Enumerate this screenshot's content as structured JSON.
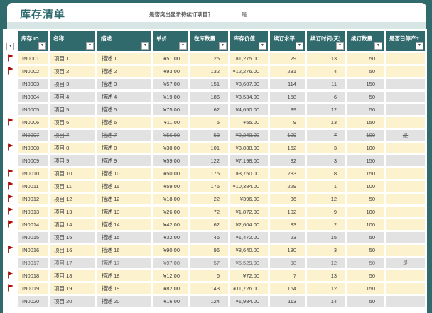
{
  "page": {
    "title": "库存清单",
    "highlight_question": "是否突出显示待续订项目？",
    "highlight_answer": "是"
  },
  "colors": {
    "teal": "#306a6c",
    "pale_band": "#d8e5e5",
    "row_highlight": "#fdf2ce",
    "row_plain": "#e2e2e2",
    "flag_red": "#c00000",
    "title_text": "#2f6b6e"
  },
  "table": {
    "columns": [
      "库存 ID",
      "名称",
      "描述",
      "单价",
      "在库数量",
      "库存价值",
      "续订水平",
      "续订时间(天)",
      "续订数量",
      "是否已停产?"
    ],
    "rows": [
      {
        "id": "IN0001",
        "name": "项目 1",
        "desc": "描述 1",
        "price": "¥51.00",
        "qty": "25",
        "value": "¥1,275.00",
        "level": "29",
        "days": "13",
        "rqty": "50",
        "disc": "",
        "flagged": true,
        "struck": false
      },
      {
        "id": "IN0002",
        "name": "项目 2",
        "desc": "描述 2",
        "price": "¥93.00",
        "qty": "132",
        "value": "¥12,276.00",
        "level": "231",
        "days": "4",
        "rqty": "50",
        "disc": "",
        "flagged": true,
        "struck": false
      },
      {
        "id": "IN0003",
        "name": "项目 3",
        "desc": "描述 3",
        "price": "¥57.00",
        "qty": "151",
        "value": "¥8,607.00",
        "level": "114",
        "days": "11",
        "rqty": "150",
        "disc": "",
        "flagged": false,
        "struck": false
      },
      {
        "id": "IN0004",
        "name": "项目 4",
        "desc": "描述 4",
        "price": "¥19.00",
        "qty": "186",
        "value": "¥3,534.00",
        "level": "158",
        "days": "6",
        "rqty": "50",
        "disc": "",
        "flagged": false,
        "struck": false
      },
      {
        "id": "IN0005",
        "name": "项目 5",
        "desc": "描述 5",
        "price": "¥75.00",
        "qty": "62",
        "value": "¥4,650.00",
        "level": "39",
        "days": "12",
        "rqty": "50",
        "disc": "",
        "flagged": false,
        "struck": false
      },
      {
        "id": "IN0006",
        "name": "项目 6",
        "desc": "描述 6",
        "price": "¥11.00",
        "qty": "5",
        "value": "¥55.00",
        "level": "9",
        "days": "13",
        "rqty": "150",
        "disc": "",
        "flagged": true,
        "struck": false
      },
      {
        "id": "IN0007",
        "name": "项目 7",
        "desc": "描述 7",
        "price": "¥56.00",
        "qty": "58",
        "value": "¥3,248.00",
        "level": "109",
        "days": "7",
        "rqty": "100",
        "disc": "是",
        "flagged": false,
        "struck": true
      },
      {
        "id": "IN0008",
        "name": "项目 8",
        "desc": "描述 8",
        "price": "¥38.00",
        "qty": "101",
        "value": "¥3,838.00",
        "level": "162",
        "days": "3",
        "rqty": "100",
        "disc": "",
        "flagged": true,
        "struck": false
      },
      {
        "id": "IN0009",
        "name": "项目 9",
        "desc": "描述 9",
        "price": "¥59.00",
        "qty": "122",
        "value": "¥7,198.00",
        "level": "82",
        "days": "3",
        "rqty": "150",
        "disc": "",
        "flagged": false,
        "struck": false
      },
      {
        "id": "IN0010",
        "name": "项目 10",
        "desc": "描述 10",
        "price": "¥50.00",
        "qty": "175",
        "value": "¥8,750.00",
        "level": "283",
        "days": "8",
        "rqty": "150",
        "disc": "",
        "flagged": true,
        "struck": false
      },
      {
        "id": "IN0011",
        "name": "项目 11",
        "desc": "描述 11",
        "price": "¥59.00",
        "qty": "176",
        "value": "¥10,384.00",
        "level": "229",
        "days": "1",
        "rqty": "100",
        "disc": "",
        "flagged": true,
        "struck": false
      },
      {
        "id": "IN0012",
        "name": "项目 12",
        "desc": "描述 12",
        "price": "¥18.00",
        "qty": "22",
        "value": "¥396.00",
        "level": "36",
        "days": "12",
        "rqty": "50",
        "disc": "",
        "flagged": true,
        "struck": false
      },
      {
        "id": "IN0013",
        "name": "项目 13",
        "desc": "描述 13",
        "price": "¥26.00",
        "qty": "72",
        "value": "¥1,872.00",
        "level": "102",
        "days": "9",
        "rqty": "100",
        "disc": "",
        "flagged": true,
        "struck": false
      },
      {
        "id": "IN0014",
        "name": "项目 14",
        "desc": "描述 14",
        "price": "¥42.00",
        "qty": "62",
        "value": "¥2,604.00",
        "level": "83",
        "days": "2",
        "rqty": "100",
        "disc": "",
        "flagged": true,
        "struck": false
      },
      {
        "id": "IN0015",
        "name": "项目 15",
        "desc": "描述 15",
        "price": "¥32.00",
        "qty": "46",
        "value": "¥1,472.00",
        "level": "23",
        "days": "15",
        "rqty": "50",
        "disc": "",
        "flagged": false,
        "struck": false
      },
      {
        "id": "IN0016",
        "name": "项目 16",
        "desc": "描述 16",
        "price": "¥90.00",
        "qty": "96",
        "value": "¥8,640.00",
        "level": "180",
        "days": "3",
        "rqty": "50",
        "disc": "",
        "flagged": true,
        "struck": false
      },
      {
        "id": "IN0017",
        "name": "项目 17",
        "desc": "描述 17",
        "price": "¥97.00",
        "qty": "57",
        "value": "¥5,529.00",
        "level": "98",
        "days": "12",
        "rqty": "50",
        "disc": "是",
        "flagged": false,
        "struck": true
      },
      {
        "id": "IN0018",
        "name": "项目 18",
        "desc": "描述 18",
        "price": "¥12.00",
        "qty": "6",
        "value": "¥72.00",
        "level": "7",
        "days": "13",
        "rqty": "50",
        "disc": "",
        "flagged": true,
        "struck": false
      },
      {
        "id": "IN0019",
        "name": "项目 19",
        "desc": "描述 19",
        "price": "¥82.00",
        "qty": "143",
        "value": "¥11,726.00",
        "level": "164",
        "days": "12",
        "rqty": "150",
        "disc": "",
        "flagged": true,
        "struck": false
      },
      {
        "id": "IN0020",
        "name": "项目 20",
        "desc": "描述 20",
        "price": "¥16.00",
        "qty": "124",
        "value": "¥1,984.00",
        "level": "113",
        "days": "14",
        "rqty": "50",
        "disc": "",
        "flagged": false,
        "struck": false
      }
    ]
  }
}
